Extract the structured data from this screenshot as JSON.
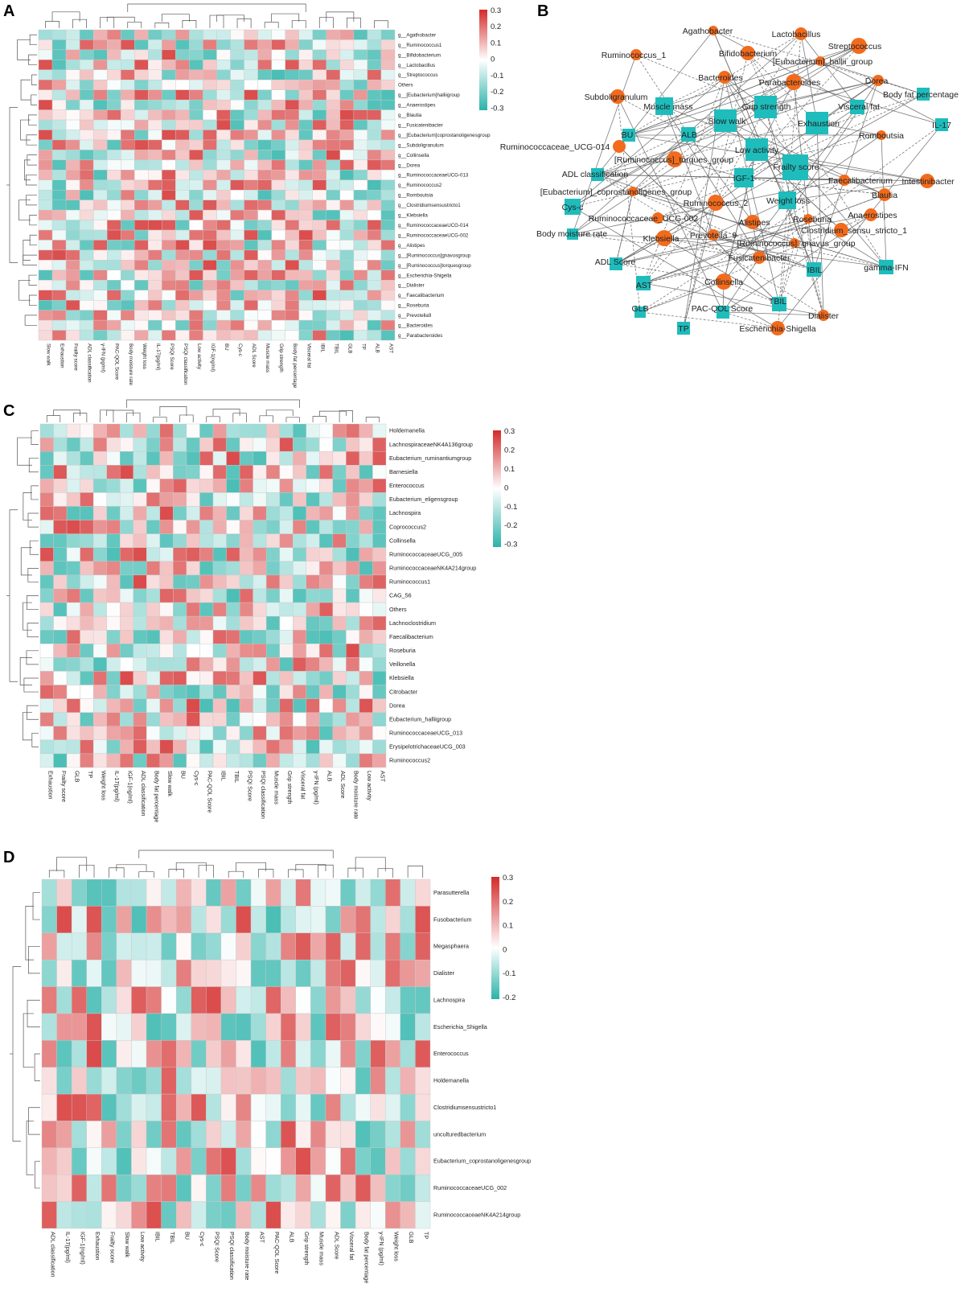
{
  "panels": {
    "A": "A",
    "B": "B",
    "C": "C",
    "D": "D"
  },
  "colors": {
    "low": "#2bb3a9",
    "mid": "#ffffff",
    "high": "#d42a2a",
    "genus_node": "#f26b1d",
    "clinical_node": "#1fbcbc"
  },
  "chart_data": [
    {
      "panel": "A",
      "type": "heatmap",
      "rows": [
        "g__Agathobacter",
        "g__Ruminococcus1",
        "g__Bifidobacterium",
        "g__Lactobacillus",
        "g__Streptococcus",
        "Others",
        "g__[Eubacterium]halliigroup",
        "g__Anaerostipes",
        "g__Blautia",
        "g__Fusicatenibacter",
        "g__[Eubacterium]coprostanoligenesgroup",
        "g__Subdoligranulum",
        "g__Collinsella",
        "g__Dorea",
        "g__RuminococcaceaeUCG-013",
        "g__Ruminococcus2",
        "g__Romboutsia",
        "g__Clostridiumsensustricto1",
        "g__Klebsiella",
        "g__RuminococcaceaeUCG-014",
        "g__RuminococcaceaeUCG-002",
        "g__Alistipes",
        "g__[Ruminococcus]gnavusgroup",
        "g__[Ruminococcus]torquesgroup",
        "g__Escherichia-Shigella",
        "g__Dialister",
        "g__Faecalibacterium",
        "g__Roseburia",
        "g__Prevotella9",
        "g__Bacteroides",
        "g__Parabacteroides"
      ],
      "columns": [
        "Slow walk",
        "Exhaustion",
        "Frailty score",
        "ADL classification",
        "γ-IFN (pg/ml)",
        "PAC-QOL Score",
        "Body moisture rate",
        "Weight loss",
        "IL-17(pg/ml)",
        "PSQI Score",
        "PSQI classification",
        "Low activity",
        "IGF-1(ng/ml)",
        "BU",
        "Cys-c",
        "ADL Score",
        "Muscle mass",
        "Grip strength",
        "Body fat percentage",
        "Visceral fat",
        "IBIL",
        "TBIL",
        "GLB",
        "TP",
        "ALB",
        "AST"
      ],
      "legend_ticks": [
        "0.3",
        "0.2",
        "0.1",
        "0",
        "-0.1",
        "-0.2",
        "-0.3"
      ],
      "range": [
        -0.3,
        0.3
      ]
    },
    {
      "panel": "B",
      "type": "network",
      "genus_nodes": [
        "Agathobacter",
        "Lactobacillus",
        "Streptococcus",
        "Ruminococcus_1",
        "Bifidobacterium",
        "[Eubacterium]_hallii_group",
        "Bacteroides",
        "Parabacteroides",
        "Dorea",
        "Subdoligranulum",
        "Romboutsia",
        "Ruminococcaceae_UCG-014",
        "[Ruminococcus]_torques_group",
        "Faecalibacterium",
        "Intestinibacter",
        "[Eubacterium]_coprostanoligenes_group",
        "Blautia",
        "Ruminococcus_2",
        "Ruminococcaceae_UCG-002",
        "Alistipes",
        "Roseburia",
        "Anaerostipes",
        "Klebsiella",
        "Prevotella_9",
        "Clostridium_sensu_stricto_1",
        "[Ruminococcus]_gnavus_group",
        "Fusicatenibacter",
        "Collinsella",
        "Dialister",
        "Escherichia-Shigella"
      ],
      "clinical_nodes": [
        "Muscle mass",
        "Grip strength",
        "Visceral fat",
        "Body fat percentage",
        "Slow walk",
        "Exhaustion",
        "BU",
        "ALB",
        "IL-17",
        "Low activity",
        "Frailty score",
        "IGF-1",
        "ADL classification",
        "Weight loss",
        "Cys-c",
        "Body moisture rate",
        "ADL Score",
        "IBIL",
        "gamma-IFN",
        "AST",
        "GLB",
        "PAC-QOL Score",
        "TBIL",
        "TP"
      ]
    },
    {
      "panel": "C",
      "type": "heatmap",
      "rows": [
        "Holdemanella",
        "LachnospiraceaeNK4A136group",
        "Eubacterium_ruminantiumgroup",
        "Barnesiella",
        "Enterococcus",
        "Eubacterium_eligensgroup",
        "Lachnospira",
        "Coprococcus2",
        "Collinsella",
        "RuminococcaceaeUCG_005",
        "RuminococcaceaeNK4A214group",
        "Ruminococcus1",
        "CAG_56",
        "Others",
        "Lachnoclostridium",
        "Faecalibacterium",
        "Roseburia",
        "Veillonella",
        "Klebsiella",
        "Citrobacter",
        "Dorea",
        "Eubacterium_halliigroup",
        "RuminococcaceaeUCG_013",
        "ErysipelotrichaceaeUCG_003",
        "Ruminococcus2"
      ],
      "columns": [
        "Exhaustion",
        "Frailty score",
        "GLB",
        "TP",
        "Weight loss",
        "IL-17(pg/ml)",
        "IGF-1(ng/ml)",
        "ADL classification",
        "Body fat percentage",
        "Slow walk",
        "BU",
        "Cys-c",
        "PAC-QOL Score",
        "IBIL",
        "TBIL",
        "PSQI Score",
        "PSQI classification",
        "Muscle mass",
        "Grip strength",
        "Visceral fat",
        "γ-IFN (pg/ml)",
        "ALB",
        "ADL Score",
        "Body moisture rate",
        "Low activity",
        "AST"
      ],
      "legend_ticks": [
        "0.3",
        "0.2",
        "0.1",
        "0",
        "-0.1",
        "-0.2",
        "-0.3"
      ],
      "range": [
        -0.3,
        0.3
      ]
    },
    {
      "panel": "D",
      "type": "heatmap",
      "rows": [
        "Parasutterella",
        "Fusobacterium",
        "Megasphaera",
        "Dialister",
        "Lachnospira",
        "Escherichia_Shigella",
        "Enterococcus",
        "Holdemanella",
        "Clostridiumsensustricto1",
        "unculturedbacterium",
        "Eubacterium_coprostanoligenesgroup",
        "RuminococcaceaeUCG_002",
        "RuminococcaceaeNK4A214group"
      ],
      "columns": [
        "ADL classification",
        "IL-17(pg/ml)",
        "IGF-1(ng/ml)",
        "Exhaustion",
        "Frailty score",
        "Slow walk",
        "Low activity",
        "IBIL",
        "TBIL",
        "BU",
        "Cys-c",
        "PSQI Score",
        "PSQI classification",
        "Body moisture rate",
        "AST",
        "PAC-QOL Score",
        "ALB",
        "Grip strength",
        "Muscle mass",
        "ADL Score",
        "Visceral fat",
        "Body fat percentage",
        "γ-IFN (pg/ml)",
        "Weight loss",
        "GLB",
        "TP"
      ],
      "legend_ticks": [
        "0.3",
        "0.2",
        "0.1",
        "0",
        "-0.1",
        "-0.2"
      ],
      "range": [
        -0.25,
        0.35
      ]
    }
  ]
}
